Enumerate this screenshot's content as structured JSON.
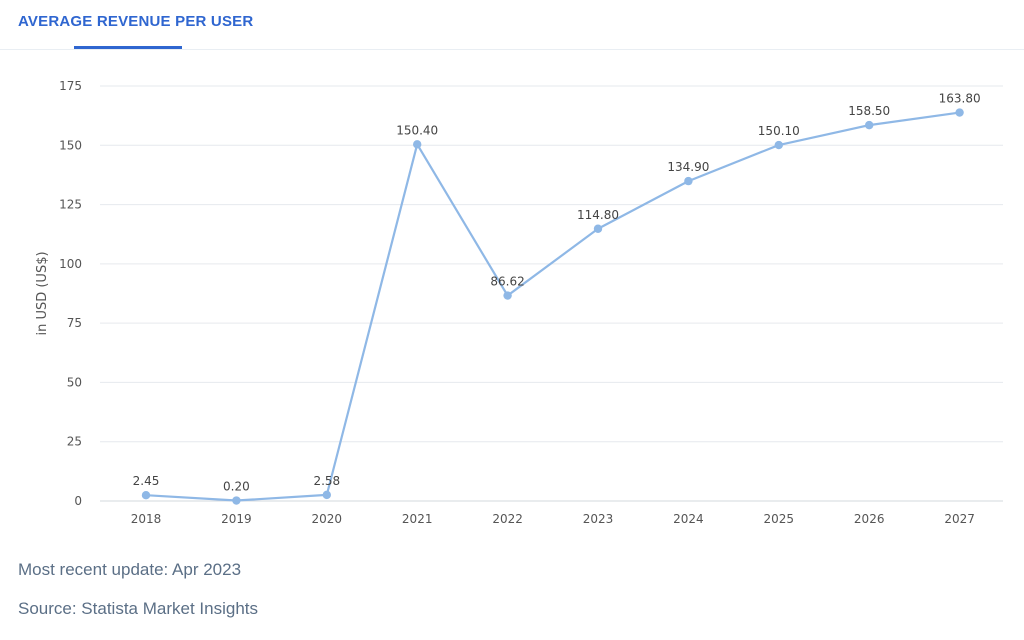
{
  "tab": {
    "label": "AVERAGE REVENUE PER USER"
  },
  "footer": {
    "update": "Most recent update: Apr 2023",
    "source": "Source: Statista Market Insights"
  },
  "colors": {
    "accent": "#2f66d0",
    "series": "#8fb8e6",
    "grid": "#e6e9ee",
    "axis_text": "#555555"
  },
  "chart_data": {
    "type": "line",
    "title": "",
    "xlabel": "",
    "ylabel": "in USD (US$)",
    "ylim": [
      0,
      175
    ],
    "yticks": [
      0,
      25,
      50,
      75,
      100,
      125,
      150,
      175
    ],
    "categories": [
      "2018",
      "2019",
      "2020",
      "2021",
      "2022",
      "2023",
      "2024",
      "2025",
      "2026",
      "2027"
    ],
    "series": [
      {
        "values": [
          2.45,
          0.2,
          2.58,
          150.4,
          86.62,
          114.8,
          134.9,
          150.1,
          158.5,
          163.8
        ],
        "labels": [
          "2.45",
          "0.20",
          "2.58",
          "150.40",
          "86.62",
          "114.80",
          "134.90",
          "150.10",
          "158.50",
          "163.80"
        ]
      }
    ],
    "grid": true,
    "legend": "none"
  }
}
